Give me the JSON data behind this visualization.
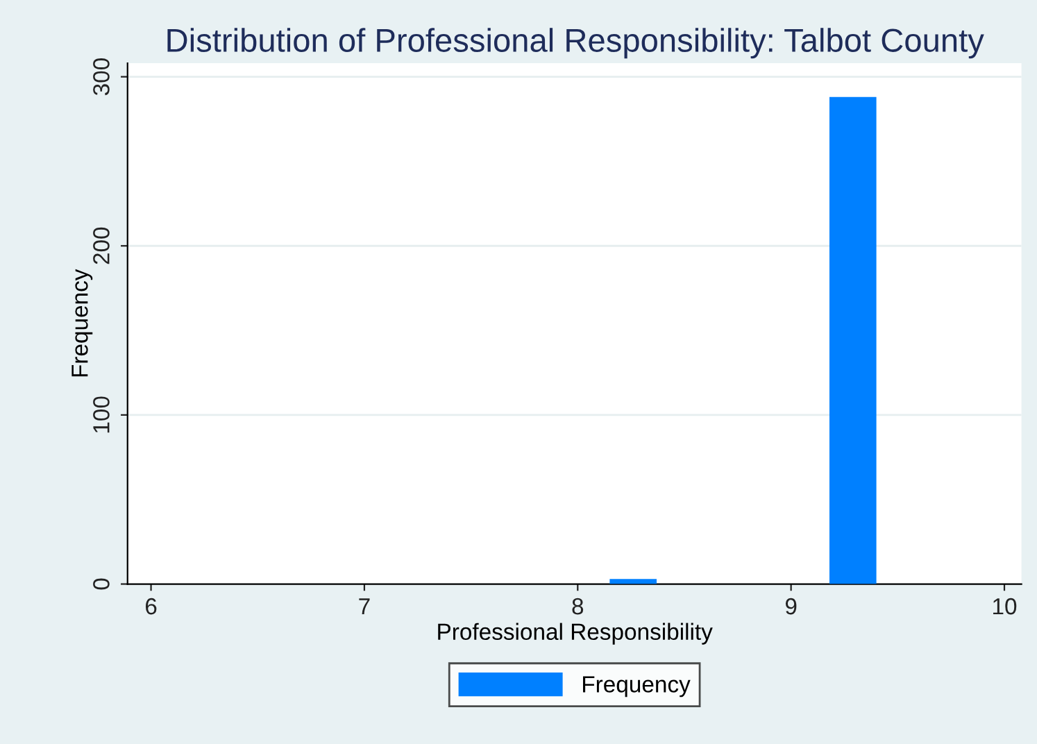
{
  "chart_data": {
    "type": "histogram",
    "title": "Distribution of Professional Responsibility: Talbot County",
    "xlabel": "Professional Responsibility",
    "ylabel": "Frequency",
    "bins": [
      8.15,
      8.37,
      9.18,
      9.4
    ],
    "series": [
      {
        "name": "Frequency",
        "color": "#0080ff",
        "values": [
          3,
          0,
          288
        ]
      }
    ],
    "xlim": [
      5.89,
      10.08
    ],
    "xticks": [
      6,
      7,
      8,
      9,
      10
    ],
    "ylim": [
      0,
      308
    ],
    "yticks": [
      0,
      100,
      200,
      300
    ],
    "grid": "y",
    "legend": "bottom"
  }
}
